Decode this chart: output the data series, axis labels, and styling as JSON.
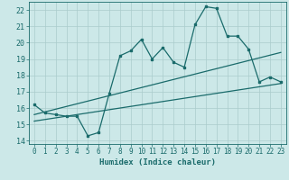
{
  "title": "",
  "xlabel": "Humidex (Indice chaleur)",
  "ylabel": "",
  "xlim": [
    -0.5,
    23.5
  ],
  "ylim": [
    13.8,
    22.5
  ],
  "xticks": [
    0,
    1,
    2,
    3,
    4,
    5,
    6,
    7,
    8,
    9,
    10,
    11,
    12,
    13,
    14,
    15,
    16,
    17,
    18,
    19,
    20,
    21,
    22,
    23
  ],
  "yticks": [
    14,
    15,
    16,
    17,
    18,
    19,
    20,
    21,
    22
  ],
  "bg_color": "#cce8e8",
  "line_color": "#1a6b6b",
  "grid_color": "#aacccc",
  "main_x": [
    0,
    1,
    2,
    3,
    4,
    5,
    6,
    7,
    8,
    9,
    10,
    11,
    12,
    13,
    14,
    15,
    16,
    17,
    18,
    19,
    20,
    21,
    22,
    23
  ],
  "main_y": [
    16.2,
    15.7,
    15.6,
    15.5,
    15.5,
    14.3,
    14.5,
    16.9,
    19.2,
    19.5,
    20.2,
    19.0,
    19.7,
    18.8,
    18.5,
    21.1,
    22.2,
    22.1,
    20.4,
    20.4,
    19.6,
    17.6,
    17.9,
    17.6
  ],
  "trend1_x": [
    0,
    23
  ],
  "trend1_y": [
    15.6,
    19.4
  ],
  "trend2_x": [
    0,
    23
  ],
  "trend2_y": [
    15.2,
    17.5
  ],
  "figsize": [
    3.2,
    2.0
  ],
  "dpi": 100
}
